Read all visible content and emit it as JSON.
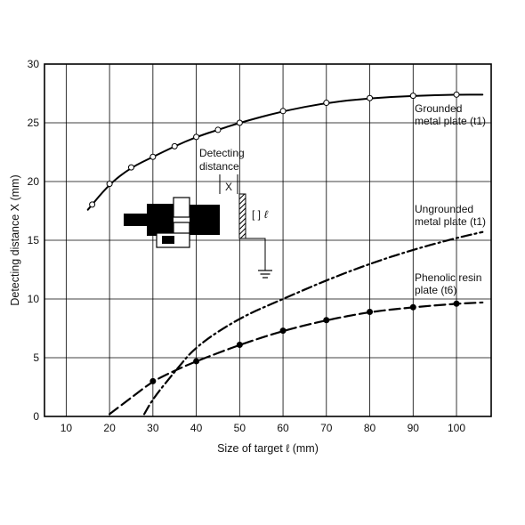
{
  "chart_data": {
    "type": "line",
    "xlabel": "Size of target ℓ (mm)",
    "ylabel": "Detecting distance X (mm)",
    "xlim": [
      5,
      108
    ],
    "ylim": [
      0,
      30
    ],
    "x_ticks": [
      10,
      20,
      30,
      40,
      50,
      60,
      70,
      80,
      90,
      100
    ],
    "y_ticks": [
      0,
      5,
      10,
      15,
      20,
      25,
      30
    ],
    "grid": true,
    "series": [
      {
        "label_lines": [
          "Grounded",
          "metal plate (t1)"
        ],
        "style": "solid",
        "marker": "open-circle",
        "x": [
          15,
          20,
          25,
          30,
          35,
          40,
          45,
          50,
          60,
          70,
          80,
          90,
          100,
          106
        ],
        "y": [
          17.6,
          19.8,
          21.2,
          22.1,
          23.0,
          23.8,
          24.4,
          25.0,
          26.0,
          26.7,
          27.1,
          27.3,
          27.4,
          27.4
        ],
        "marker_x": [
          16,
          20,
          25,
          30,
          35,
          40,
          45,
          50,
          60,
          70,
          80,
          90,
          100
        ]
      },
      {
        "label_lines": [
          "Ungrounded",
          "metal plate (t1)"
        ],
        "style": "dash-dot",
        "marker": "none",
        "x": [
          28,
          30,
          35,
          40,
          50,
          60,
          70,
          80,
          90,
          100,
          106
        ],
        "y": [
          0.2,
          1.5,
          3.8,
          6.0,
          8.4,
          10.0,
          11.6,
          13.0,
          14.2,
          15.2,
          15.7
        ],
        "marker_x": []
      },
      {
        "label_lines": [
          "Phenolic resin",
          "plate (t6)"
        ],
        "style": "dashed",
        "marker": "filled-circle",
        "x": [
          20,
          25,
          30,
          35,
          40,
          50,
          60,
          70,
          80,
          90,
          100,
          106
        ],
        "y": [
          0.2,
          1.6,
          3.0,
          3.9,
          4.7,
          6.1,
          7.3,
          8.2,
          8.9,
          9.3,
          9.6,
          9.7
        ],
        "marker_x": [
          30,
          40,
          50,
          60,
          70,
          80,
          90,
          100
        ]
      }
    ]
  },
  "inset": {
    "label_lines": [
      "Detecting",
      "distance"
    ],
    "x_label": "X",
    "target_label": "ℓ"
  }
}
